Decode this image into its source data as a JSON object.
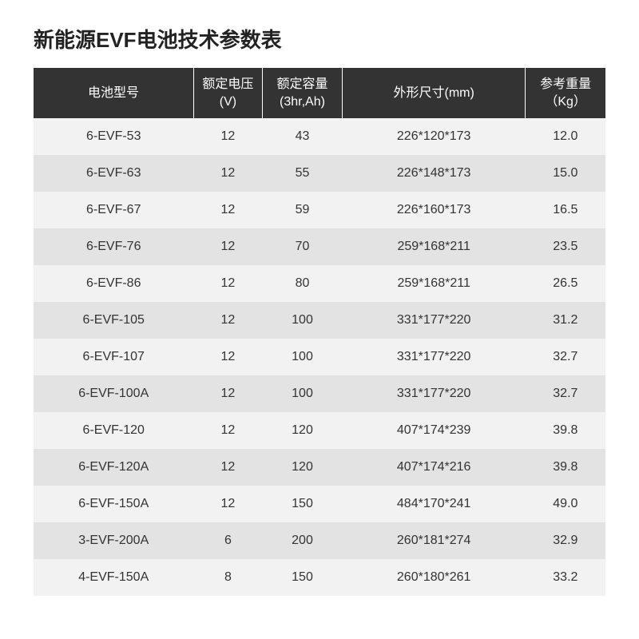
{
  "title": "新能源EVF电池技术参数表",
  "table": {
    "type": "table",
    "columns": [
      {
        "label": "电池型号",
        "width_pct": 28,
        "align": "center"
      },
      {
        "label": "额定电压\n(V)",
        "width_pct": 12,
        "align": "center"
      },
      {
        "label": "额定容量\n(3hr,Ah)",
        "width_pct": 14,
        "align": "center"
      },
      {
        "label": "外形尺寸(mm)",
        "width_pct": 32,
        "align": "center"
      },
      {
        "label": "参考重量\n（Kg）",
        "width_pct": 14,
        "align": "center"
      }
    ],
    "rows": [
      [
        "6-EVF-53",
        "12",
        "43",
        "226*120*173",
        "12.0"
      ],
      [
        "6-EVF-63",
        "12",
        "55",
        "226*148*173",
        "15.0"
      ],
      [
        "6-EVF-67",
        "12",
        "59",
        "226*160*173",
        "16.5"
      ],
      [
        "6-EVF-76",
        "12",
        "70",
        "259*168*211",
        "23.5"
      ],
      [
        "6-EVF-86",
        "12",
        "80",
        "259*168*211",
        "26.5"
      ],
      [
        "6-EVF-105",
        "12",
        "100",
        "331*177*220",
        "31.2"
      ],
      [
        "6-EVF-107",
        "12",
        "100",
        "331*177*220",
        "32.7"
      ],
      [
        "6-EVF-100A",
        "12",
        "100",
        "331*177*220",
        "32.7"
      ],
      [
        "6-EVF-120",
        "12",
        "120",
        "407*174*239",
        "39.8"
      ],
      [
        "6-EVF-120A",
        "12",
        "120",
        "407*174*216",
        "39.8"
      ],
      [
        "6-EVF-150A",
        "12",
        "150",
        "484*170*241",
        "49.0"
      ],
      [
        "3-EVF-200A",
        "6",
        "200",
        "260*181*274",
        "32.9"
      ],
      [
        "4-EVF-150A",
        "8",
        "150",
        "260*180*261",
        "33.2"
      ]
    ],
    "header_bg": "#333333",
    "header_fg": "#ffffff",
    "row_odd_bg": "#f2f2f2",
    "row_even_bg": "#e3e3e3",
    "font_size_header": 16,
    "font_size_cell": 16,
    "cell_color": "#333333"
  }
}
